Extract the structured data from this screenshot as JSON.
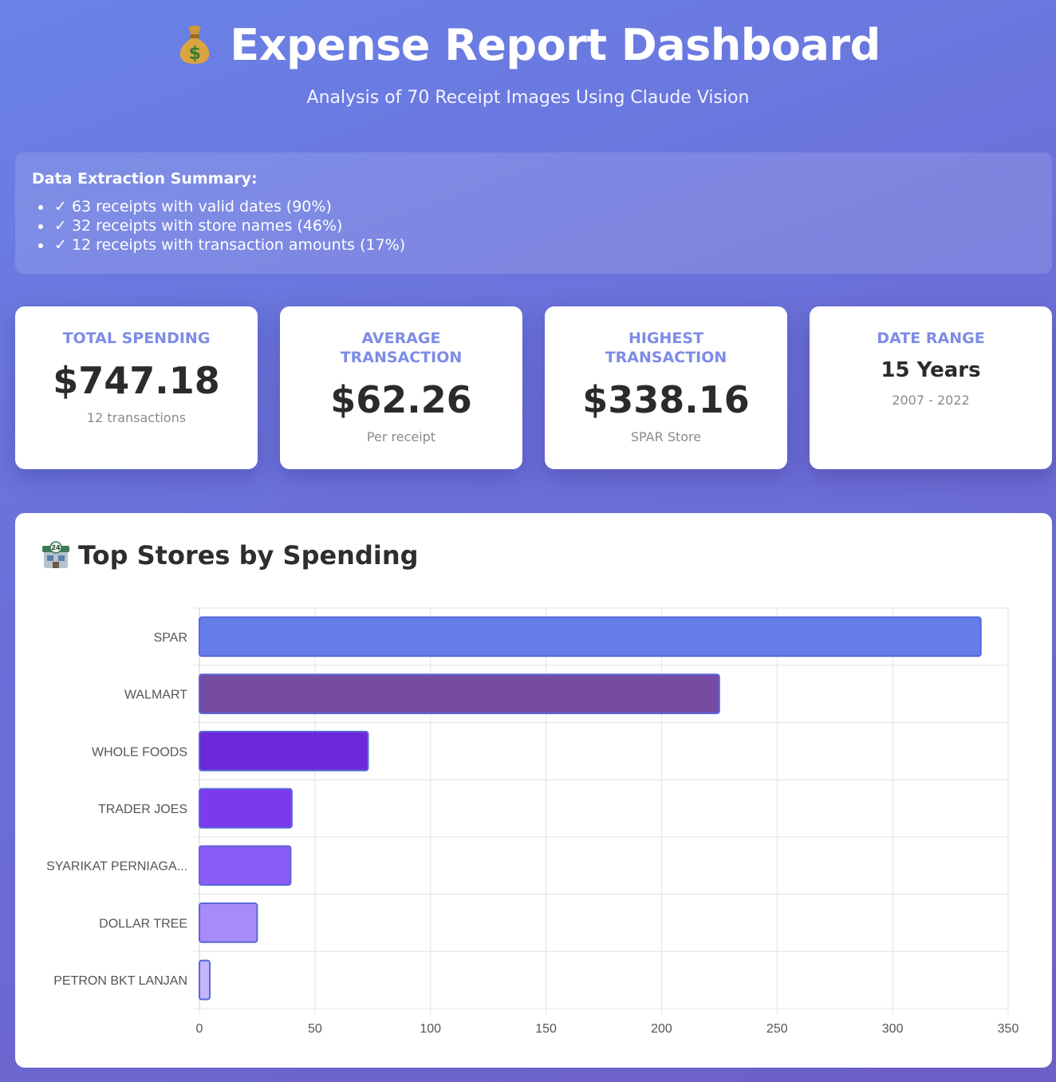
{
  "header": {
    "icon": "money-bag-icon",
    "title": "Expense Report Dashboard",
    "subtitle": "Analysis of 70 Receipt Images Using Claude Vision"
  },
  "summary": {
    "heading": "Data Extraction Summary:",
    "items": [
      "✓ 63 receipts with valid dates (90%)",
      "✓ 32 receipts with store names (46%)",
      "✓ 12 receipts with transaction amounts (17%)"
    ]
  },
  "cards": [
    {
      "label": "TOTAL SPENDING",
      "value": "$747.18",
      "note": "12 transactions"
    },
    {
      "label": "AVERAGE TRANSACTION",
      "value": "$62.26",
      "note": "Per receipt"
    },
    {
      "label": "HIGHEST TRANSACTION",
      "value": "$338.16",
      "note": "SPAR Store"
    },
    {
      "label": "DATE RANGE",
      "value": "15 Years",
      "note": "2007 - 2022"
    }
  ],
  "chart_section": {
    "icon": "convenience-store-icon",
    "title": "Top Stores by Spending"
  },
  "chart_data": {
    "type": "bar",
    "orientation": "horizontal",
    "categories": [
      "SPAR",
      "WALMART",
      "WHOLE FOODS",
      "TRADER JOES",
      "SYARIKAT PERNIAGA...",
      "DOLLAR TREE",
      "PETRON BKT LANJAN"
    ],
    "values": [
      338.16,
      225,
      73,
      40,
      39.5,
      25,
      4.5
    ],
    "colors": [
      "#667eea",
      "#764ba2",
      "#6d28d9",
      "#7c3aed",
      "#8b5cf6",
      "#a78bfa",
      "#c4b5fd"
    ],
    "border_color": "#5a67d8",
    "title": "",
    "xlabel": "",
    "ylabel": "",
    "xlim": [
      0,
      350
    ],
    "xticks": [
      0,
      50,
      100,
      150,
      200,
      250,
      300,
      350
    ],
    "grid": true,
    "legend": "none"
  }
}
